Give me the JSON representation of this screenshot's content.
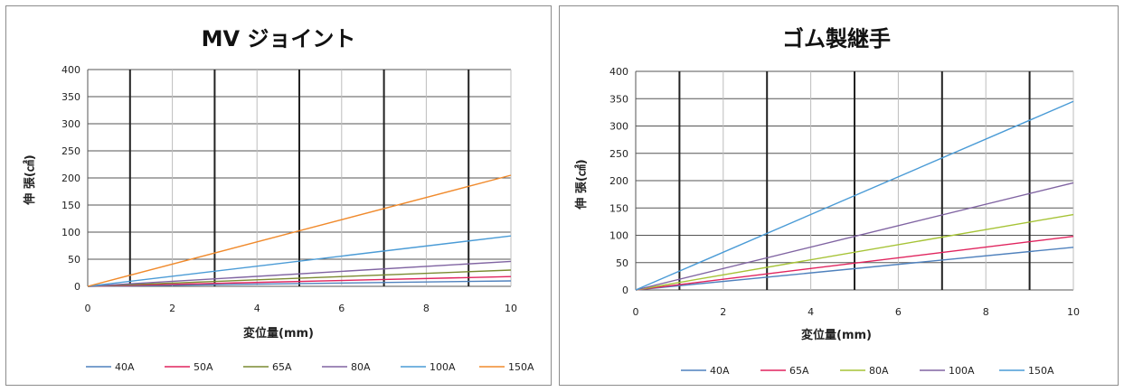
{
  "chart_data": [
    {
      "type": "line",
      "title": "MV ジョイント",
      "xlabel": "変位量(mm)",
      "ylabel": "伸 張(㎠)",
      "xlim": [
        0,
        10
      ],
      "ylim": [
        0,
        400
      ],
      "x_ticks": [
        0,
        2,
        4,
        6,
        8,
        10
      ],
      "y_ticks": [
        0,
        50,
        100,
        150,
        200,
        250,
        300,
        350,
        400
      ],
      "grid": true,
      "legend_position": "bottom",
      "series": [
        {
          "name": "40A",
          "color": "#4f81bd",
          "x": [
            0,
            10
          ],
          "y": [
            0,
            10
          ]
        },
        {
          "name": "50A",
          "color": "#e0245e",
          "x": [
            0,
            10
          ],
          "y": [
            0,
            18
          ]
        },
        {
          "name": "65A",
          "color": "#7a8a30",
          "x": [
            0,
            10
          ],
          "y": [
            0,
            30
          ]
        },
        {
          "name": "80A",
          "color": "#8064a2",
          "x": [
            0,
            10
          ],
          "y": [
            0,
            46
          ]
        },
        {
          "name": "100A",
          "color": "#4a9bd6",
          "x": [
            0,
            10
          ],
          "y": [
            0,
            93
          ]
        },
        {
          "name": "150A",
          "color": "#f08a2c",
          "x": [
            0,
            10
          ],
          "y": [
            0,
            205
          ]
        }
      ]
    },
    {
      "type": "line",
      "title": "ゴム製継手",
      "xlabel": "変位量(mm)",
      "ylabel": "伸 張(㎠)",
      "xlim": [
        0,
        10
      ],
      "ylim": [
        0,
        400
      ],
      "x_ticks": [
        0,
        2,
        4,
        6,
        8,
        10
      ],
      "y_ticks": [
        0,
        50,
        100,
        150,
        200,
        250,
        300,
        350,
        400
      ],
      "grid": true,
      "legend_position": "bottom",
      "series": [
        {
          "name": "40A",
          "color": "#4f81bd",
          "x": [
            0,
            10
          ],
          "y": [
            0,
            78
          ]
        },
        {
          "name": "65A",
          "color": "#e0245e",
          "x": [
            0,
            10
          ],
          "y": [
            0,
            98
          ]
        },
        {
          "name": "80A",
          "color": "#a6c336",
          "x": [
            0,
            10
          ],
          "y": [
            0,
            138
          ]
        },
        {
          "name": "100A",
          "color": "#8064a2",
          "x": [
            0,
            10
          ],
          "y": [
            0,
            196
          ]
        },
        {
          "name": "150A",
          "color": "#4a9bd6",
          "x": [
            0,
            10
          ],
          "y": [
            0,
            345
          ]
        }
      ]
    }
  ]
}
